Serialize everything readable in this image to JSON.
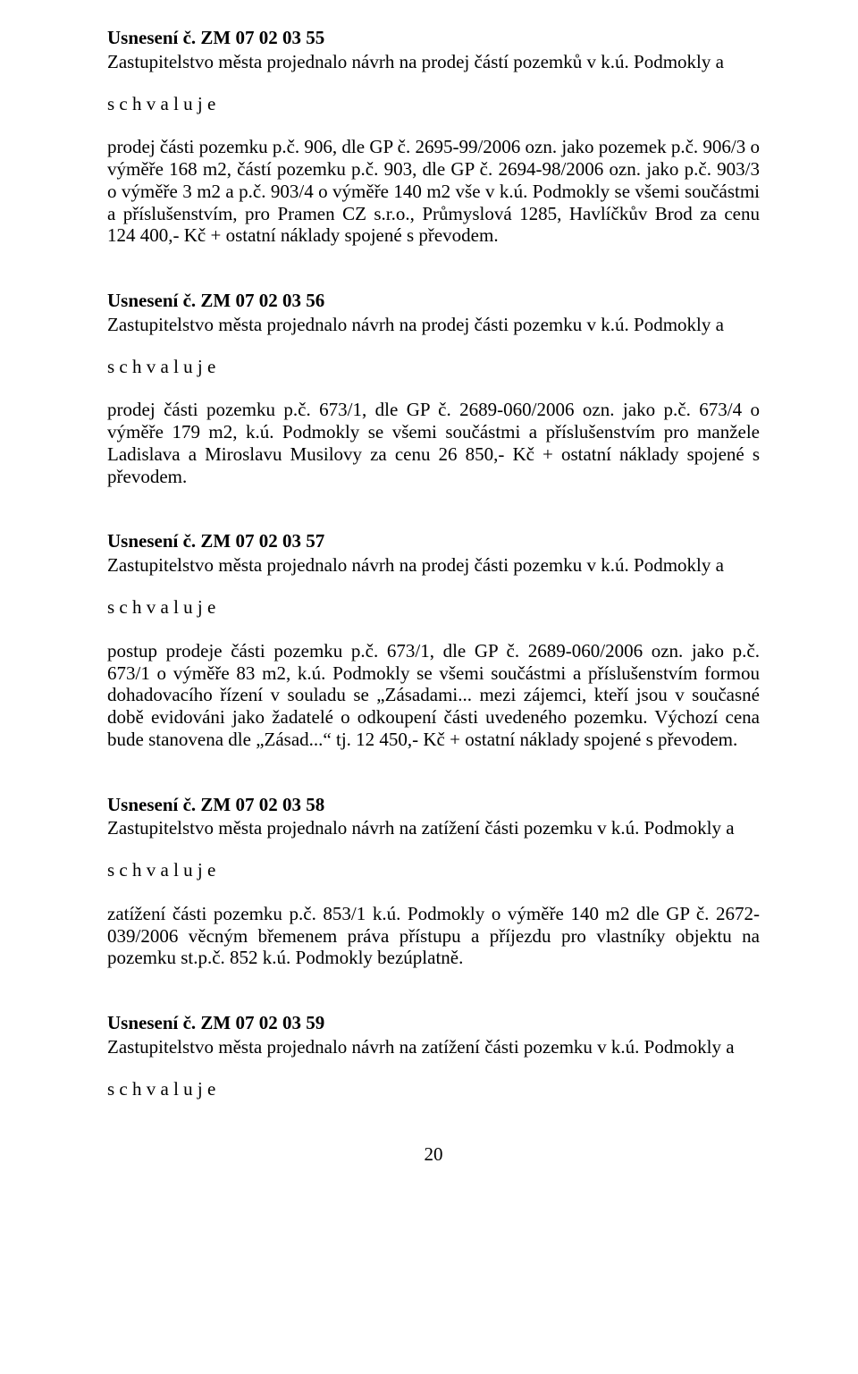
{
  "page": {
    "number": "20",
    "font_family": "Times New Roman",
    "font_size_pt": 16,
    "text_color": "#000000",
    "background_color": "#ffffff"
  },
  "approve_word": "s c h v a l u j e",
  "resolutions": [
    {
      "title": "Usnesení č. ZM 07 02 03 55",
      "intro": "Zastupitelstvo města projednalo návrh na prodej částí pozemků v k.ú. Podmokly a",
      "body": "prodej části pozemku p.č. 906, dle GP č. 2695-99/2006 ozn. jako pozemek p.č. 906/3 o výměře 168 m2, částí pozemku p.č. 903, dle GP č. 2694-98/2006 ozn. jako p.č. 903/3 o výměře 3 m2 a p.č. 903/4 o výměře 140 m2 vše v k.ú. Podmokly se všemi součástmi a příslušenstvím, pro Pramen CZ s.r.o., Průmyslová 1285, Havlíčkův Brod za cenu 124 400,- Kč + ostatní náklady spojené s převodem."
    },
    {
      "title": "Usnesení č. ZM 07 02 03 56",
      "intro": "Zastupitelstvo města projednalo návrh na prodej části pozemku v k.ú. Podmokly a",
      "body": "prodej části pozemku p.č. 673/1, dle GP č. 2689-060/2006 ozn. jako p.č. 673/4 o výměře  179 m2, k.ú. Podmokly se všemi součástmi a příslušenstvím pro manžele Ladislava a Miroslavu Musilovy za cenu 26 850,- Kč + ostatní náklady spojené s převodem."
    },
    {
      "title": "Usnesení č. ZM 07 02 03 57",
      "intro": "Zastupitelstvo města projednalo návrh na prodej části pozemku v k.ú. Podmokly a",
      "body": "postup prodeje části pozemku p.č. 673/1, dle GP č. 2689-060/2006 ozn. jako p.č. 673/1        o výměře 83 m2, k.ú. Podmokly se všemi součástmi a příslušenstvím formou dohadovacího řízení v souladu se „Zásadami... mezi zájemci, kteří jsou v současné době evidováni jako žadatelé o odkoupení části uvedeného pozemku. Výchozí cena bude stanovena dle „Zásad...“ tj. 12 450,- Kč + ostatní náklady spojené s převodem."
    },
    {
      "title": "Usnesení č. ZM 07 02 03 58",
      "intro": "Zastupitelstvo města projednalo návrh na zatížení části pozemku v k.ú. Podmokly a",
      "body": "zatížení části pozemku p.č. 853/1 k.ú. Podmokly o výměře 140 m2 dle GP č. 2672-039/2006 věcným břemenem práva přístupu a příjezdu pro vlastníky objektu na pozemku st.p.č. 852 k.ú. Podmokly bezúplatně."
    },
    {
      "title": "Usnesení č. ZM 07 02 03 59",
      "intro": "Zastupitelstvo města projednalo návrh na zatížení části pozemku v k.ú. Podmokly a",
      "body": ""
    }
  ]
}
